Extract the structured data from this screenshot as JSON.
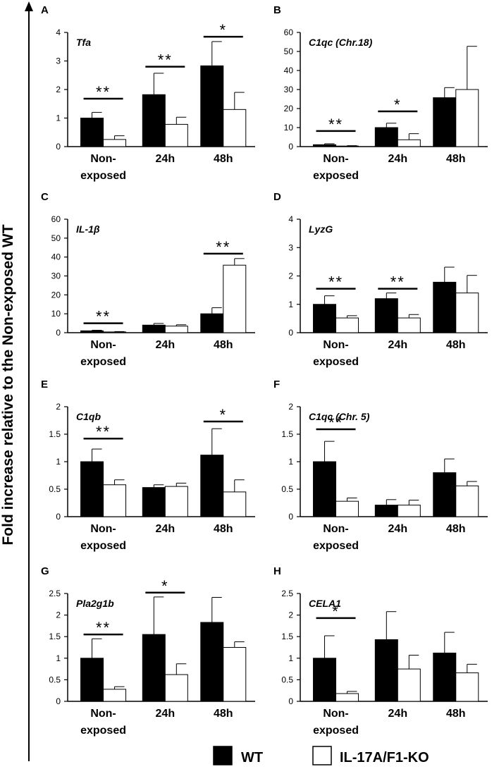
{
  "figure": {
    "y_axis_label": "Fold increase relative to the Non-exposed  WT",
    "legend": {
      "wt_label": "WT",
      "ko_label": "IL-17A/F1-KO"
    },
    "colors": {
      "wt": "#000000",
      "ko": "#ffffff",
      "stroke": "#000000"
    }
  },
  "chart_data": [
    {
      "type": "bar",
      "panel": "A",
      "gene": "Tfa",
      "categories": [
        "Non-exposed",
        "24h",
        "48h"
      ],
      "category_lines": [
        [
          "Non-",
          "exposed"
        ],
        [
          "24h"
        ],
        [
          "48h"
        ]
      ],
      "ylim": [
        0,
        4
      ],
      "yticks": [
        0,
        1,
        2,
        3,
        4
      ],
      "series": [
        {
          "name": "WT",
          "values": [
            1.0,
            1.82,
            2.83
          ],
          "errors": [
            0.2,
            0.75,
            0.85
          ]
        },
        {
          "name": "IL-17A/F1-KO",
          "values": [
            0.25,
            0.78,
            1.3
          ],
          "errors": [
            0.13,
            0.25,
            0.6
          ]
        }
      ],
      "significance": [
        {
          "category": 0,
          "label": "**",
          "level": 1.68
        },
        {
          "category": 1,
          "label": "**",
          "level": 2.8
        },
        {
          "category": 2,
          "label": "*",
          "level": 3.85
        }
      ]
    },
    {
      "type": "bar",
      "panel": "B",
      "gene": "C1qc  (Chr.18)",
      "categories": [
        "Non-exposed",
        "24h",
        "48h"
      ],
      "category_lines": [
        [
          "Non-",
          "exposed"
        ],
        [
          "24h"
        ],
        [
          "48h"
        ]
      ],
      "ylim": [
        0,
        60
      ],
      "yticks": [
        0,
        10,
        20,
        30,
        40,
        50,
        60
      ],
      "series": [
        {
          "name": "WT",
          "values": [
            1.0,
            10.0,
            25.7
          ],
          "errors": [
            0.5,
            2.3,
            5.3
          ]
        },
        {
          "name": "IL-17A/F1-KO",
          "values": [
            0.3,
            3.6,
            30.0
          ],
          "errors": [
            0.2,
            3.2,
            22.7
          ]
        }
      ],
      "significance": [
        {
          "category": 0,
          "label": "**",
          "level": 8.2
        },
        {
          "category": 1,
          "label": "*",
          "level": 18.5
        }
      ]
    },
    {
      "type": "bar",
      "panel": "C",
      "gene": "IL-1β",
      "categories": [
        "Non-exposed",
        "24h",
        "48h"
      ],
      "category_lines": [
        [
          "Non-",
          "exposed"
        ],
        [
          "24h"
        ],
        [
          "48h"
        ]
      ],
      "ylim": [
        0,
        60
      ],
      "yticks": [
        0,
        10,
        20,
        30,
        40,
        50,
        60
      ],
      "series": [
        {
          "name": "WT",
          "values": [
            1.0,
            4.0,
            10.0
          ],
          "errors": [
            0.3,
            0.9,
            3.2
          ]
        },
        {
          "name": "IL-17A/F1-KO",
          "values": [
            0.4,
            3.5,
            35.7
          ],
          "errors": [
            0.2,
            0.7,
            3.5
          ]
        }
      ],
      "significance": [
        {
          "category": 0,
          "label": "**",
          "level": 5.0
        },
        {
          "category": 2,
          "label": "**",
          "level": 41.8
        }
      ]
    },
    {
      "type": "bar",
      "panel": "D",
      "gene": "LyzG",
      "categories": [
        "Non-exposed",
        "24h",
        "48h"
      ],
      "category_lines": [
        [
          "Non-",
          "exposed"
        ],
        [
          "24h"
        ],
        [
          "48h"
        ]
      ],
      "ylim": [
        0,
        4
      ],
      "yticks": [
        0,
        1,
        2,
        3,
        4
      ],
      "series": [
        {
          "name": "WT",
          "values": [
            1.0,
            1.2,
            1.78
          ],
          "errors": [
            0.3,
            0.2,
            0.53
          ]
        },
        {
          "name": "IL-17A/F1-KO",
          "values": [
            0.52,
            0.52,
            1.4
          ],
          "errors": [
            0.08,
            0.12,
            0.62
          ]
        }
      ],
      "significance": [
        {
          "category": 0,
          "label": "**",
          "level": 1.55
        },
        {
          "category": 1,
          "label": "**",
          "level": 1.55
        }
      ]
    },
    {
      "type": "bar",
      "panel": "E",
      "gene": "C1qb",
      "categories": [
        "Non-exposed",
        "24h",
        "48h"
      ],
      "category_lines": [
        [
          "Non-",
          "exposed"
        ],
        [
          "24h"
        ],
        [
          "48h"
        ]
      ],
      "ylim": [
        0,
        2
      ],
      "yticks": [
        0,
        0.5,
        1,
        1.5,
        2
      ],
      "series": [
        {
          "name": "WT",
          "values": [
            1.0,
            0.53,
            1.12
          ],
          "errors": [
            0.23,
            0.05,
            0.48
          ]
        },
        {
          "name": "IL-17A/F1-KO",
          "values": [
            0.58,
            0.55,
            0.45
          ],
          "errors": [
            0.09,
            0.06,
            0.22
          ]
        }
      ],
      "significance": [
        {
          "category": 0,
          "label": "**",
          "level": 1.42
        },
        {
          "category": 2,
          "label": "*",
          "level": 1.73
        }
      ]
    },
    {
      "type": "bar",
      "panel": "F",
      "gene": "C1qc (Chr. 5)",
      "categories": [
        "Non-exposed",
        "24h",
        "48h"
      ],
      "category_lines": [
        [
          "Non-",
          "exposed"
        ],
        [
          "24h"
        ],
        [
          "48h"
        ]
      ],
      "ylim": [
        0,
        2
      ],
      "yticks": [
        0,
        0.5,
        1,
        1.5,
        2
      ],
      "series": [
        {
          "name": "WT",
          "values": [
            1.0,
            0.21,
            0.8
          ],
          "errors": [
            0.37,
            0.1,
            0.25
          ]
        },
        {
          "name": "IL-17A/F1-KO",
          "values": [
            0.28,
            0.21,
            0.56
          ],
          "errors": [
            0.06,
            0.09,
            0.08
          ]
        }
      ],
      "significance": [
        {
          "category": 0,
          "label": "**",
          "level": 1.59
        }
      ]
    },
    {
      "type": "bar",
      "panel": "G",
      "gene": "Pla2g1b",
      "categories": [
        "Non-exposed",
        "24h",
        "48h"
      ],
      "category_lines": [
        [
          "Non-",
          "exposed"
        ],
        [
          "24h"
        ],
        [
          "48h"
        ]
      ],
      "ylim": [
        0,
        2.5
      ],
      "yticks": [
        0,
        0.5,
        1,
        1.5,
        2,
        2.5
      ],
      "series": [
        {
          "name": "WT",
          "values": [
            1.0,
            1.55,
            1.83
          ],
          "errors": [
            0.45,
            0.87,
            0.58
          ]
        },
        {
          "name": "IL-17A/F1-KO",
          "values": [
            0.28,
            0.62,
            1.25
          ],
          "errors": [
            0.06,
            0.25,
            0.13
          ]
        }
      ],
      "significance": [
        {
          "category": 0,
          "label": "**",
          "level": 1.55
        },
        {
          "category": 1,
          "label": "*",
          "level": 2.52
        }
      ]
    },
    {
      "type": "bar",
      "panel": "H",
      "gene": "CELA1",
      "categories": [
        "Non-exposed",
        "24h",
        "48h"
      ],
      "category_lines": [
        [
          "Non-",
          "exposed"
        ],
        [
          "24h"
        ],
        [
          "48h"
        ]
      ],
      "ylim": [
        0,
        2.5
      ],
      "yticks": [
        0,
        0.5,
        1,
        1.5,
        2,
        2.5
      ],
      "series": [
        {
          "name": "WT",
          "values": [
            1.0,
            1.43,
            1.12
          ],
          "errors": [
            0.52,
            0.65,
            0.48
          ]
        },
        {
          "name": "IL-17A/F1-KO",
          "values": [
            0.18,
            0.75,
            0.66
          ],
          "errors": [
            0.05,
            0.32,
            0.2
          ]
        }
      ],
      "significance": [
        {
          "category": 0,
          "label": "*",
          "level": 1.93
        }
      ]
    }
  ]
}
